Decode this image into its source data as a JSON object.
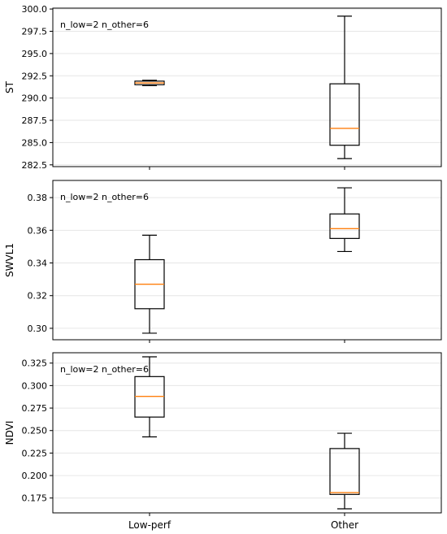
{
  "chart_data": [
    {
      "type": "box",
      "ylabel": "ST",
      "annotation": "n_low=2  n_other=6",
      "ylim": [
        282.3,
        300.1
      ],
      "yticks": [
        282.5,
        285.0,
        287.5,
        290.0,
        292.5,
        295.0,
        297.5,
        300.0
      ],
      "ytick_labels": [
        "282.5",
        "285.0",
        "287.5",
        "290.0",
        "292.5",
        "295.0",
        "297.5",
        "300.0"
      ],
      "grid": true,
      "boxes": [
        {
          "whisker_low": 291.4,
          "q1": 291.5,
          "median": 291.7,
          "q3": 291.9,
          "whisker_high": 292.0
        },
        {
          "whisker_low": 283.2,
          "q1": 284.7,
          "median": 286.6,
          "q3": 291.6,
          "whisker_high": 299.2
        }
      ]
    },
    {
      "type": "box",
      "ylabel": "SWVL1",
      "annotation": "n_low=2  n_other=6",
      "ylim": [
        0.293,
        0.3905
      ],
      "yticks": [
        0.3,
        0.32,
        0.34,
        0.36,
        0.38
      ],
      "ytick_labels": [
        "0.30",
        "0.32",
        "0.34",
        "0.36",
        "0.38"
      ],
      "grid": true,
      "boxes": [
        {
          "whisker_low": 0.297,
          "q1": 0.312,
          "median": 0.327,
          "q3": 0.342,
          "whisker_high": 0.357
        },
        {
          "whisker_low": 0.347,
          "q1": 0.355,
          "median": 0.361,
          "q3": 0.37,
          "whisker_high": 0.386
        }
      ]
    },
    {
      "type": "box",
      "ylabel": "NDVI",
      "annotation": "n_low=2  n_other=6",
      "ylim": [
        0.1585,
        0.3365
      ],
      "yticks": [
        0.175,
        0.2,
        0.225,
        0.25,
        0.275,
        0.3,
        0.325
      ],
      "ytick_labels": [
        "0.175",
        "0.200",
        "0.225",
        "0.250",
        "0.275",
        "0.300",
        "0.325"
      ],
      "grid": true,
      "boxes": [
        {
          "whisker_low": 0.243,
          "q1": 0.265,
          "median": 0.288,
          "q3": 0.31,
          "whisker_high": 0.332
        },
        {
          "whisker_low": 0.163,
          "q1": 0.179,
          "median": 0.181,
          "q3": 0.23,
          "whisker_high": 0.247
        }
      ]
    }
  ],
  "categories": [
    "Low-perf",
    "Other"
  ],
  "colors": {
    "median": "#ff7f0e",
    "box": "#000000",
    "grid": "#e6e6e6"
  }
}
